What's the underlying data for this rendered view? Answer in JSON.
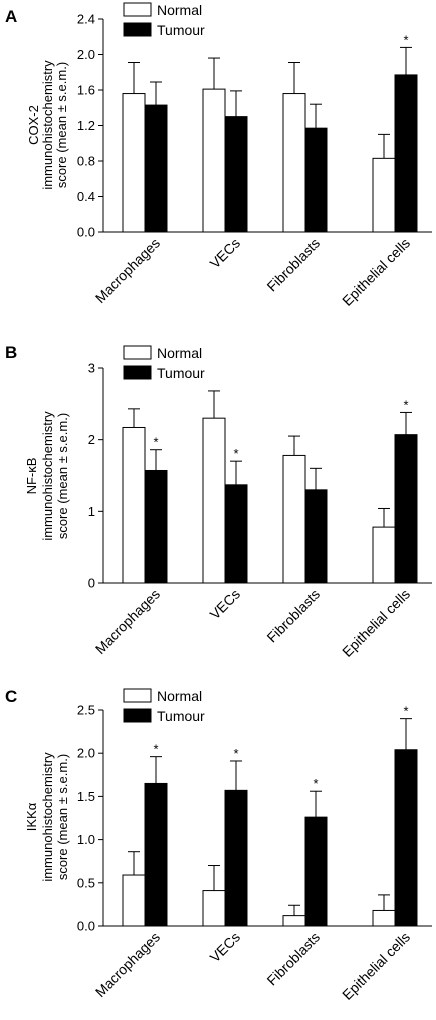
{
  "legend": {
    "normal": "Normal",
    "tumour": "Tumour"
  },
  "chart_data": [
    {
      "type": "bar",
      "panel": "A",
      "categories": [
        "Macrophages",
        "VECs",
        "Fibroblasts",
        "Epithelial cells"
      ],
      "ylabel": [
        "COX-2",
        "immunohistochemistry",
        "score (mean ± s.e.m.)"
      ],
      "ylim": [
        0,
        2.4
      ],
      "yticks": [
        "0.0",
        "0.4",
        "0.8",
        "1.2",
        "1.6",
        "2.0",
        "2.4"
      ],
      "legend_position": "top-left",
      "series": [
        {
          "name": "Normal",
          "fill": "#ffffff",
          "values": [
            1.56,
            1.61,
            1.56,
            0.83
          ],
          "errors": [
            0.35,
            0.35,
            0.35,
            0.27
          ]
        },
        {
          "name": "Tumour",
          "fill": "#000000",
          "values": [
            1.43,
            1.3,
            1.17,
            1.77
          ],
          "errors": [
            0.26,
            0.29,
            0.27,
            0.31
          ]
        }
      ],
      "significance": [
        {
          "series": "Tumour",
          "category": "Epithelial cells",
          "label": "*"
        }
      ]
    },
    {
      "type": "bar",
      "panel": "B",
      "categories": [
        "Macrophages",
        "VECs",
        "Fibroblasts",
        "Epithelial cells"
      ],
      "ylabel": [
        "NF-κB",
        "immunohistochemistry",
        "score (mean ± s.e.m.)"
      ],
      "ylim": [
        0,
        3
      ],
      "yticks": [
        "0",
        "1",
        "2",
        "3"
      ],
      "legend_position": "top-left",
      "series": [
        {
          "name": "Normal",
          "fill": "#ffffff",
          "values": [
            2.17,
            2.3,
            1.78,
            0.78
          ],
          "errors": [
            0.26,
            0.38,
            0.27,
            0.26
          ]
        },
        {
          "name": "Tumour",
          "fill": "#000000",
          "values": [
            1.57,
            1.37,
            1.3,
            2.07
          ],
          "errors": [
            0.29,
            0.33,
            0.3,
            0.31
          ]
        }
      ],
      "significance": [
        {
          "series": "Tumour",
          "category": "Macrophages",
          "label": "*"
        },
        {
          "series": "Tumour",
          "category": "VECs",
          "label": "*"
        },
        {
          "series": "Tumour",
          "category": "Epithelial cells",
          "label": "*"
        }
      ]
    },
    {
      "type": "bar",
      "panel": "C",
      "categories": [
        "Macrophages",
        "VECs",
        "Fibroblasts",
        "Epithelial cells"
      ],
      "ylabel": [
        "IKKα",
        "immunohistochemistry",
        "score (mean ± s.e.m.)"
      ],
      "ylim": [
        0,
        2.5
      ],
      "yticks": [
        "0.0",
        "0.5",
        "1.0",
        "1.5",
        "2.0",
        "2.5"
      ],
      "legend_position": "top-left",
      "series": [
        {
          "name": "Normal",
          "fill": "#ffffff",
          "values": [
            0.59,
            0.41,
            0.12,
            0.18
          ],
          "errors": [
            0.27,
            0.29,
            0.12,
            0.18
          ]
        },
        {
          "name": "Tumour",
          "fill": "#000000",
          "values": [
            1.65,
            1.57,
            1.26,
            2.04
          ],
          "errors": [
            0.31,
            0.34,
            0.3,
            0.36
          ]
        }
      ],
      "significance": [
        {
          "series": "Tumour",
          "category": "Macrophages",
          "label": "*"
        },
        {
          "series": "Tumour",
          "category": "VECs",
          "label": "*"
        },
        {
          "series": "Tumour",
          "category": "Fibroblasts",
          "label": "*"
        },
        {
          "series": "Tumour",
          "category": "Epithelial cells",
          "label": "*"
        }
      ]
    }
  ]
}
